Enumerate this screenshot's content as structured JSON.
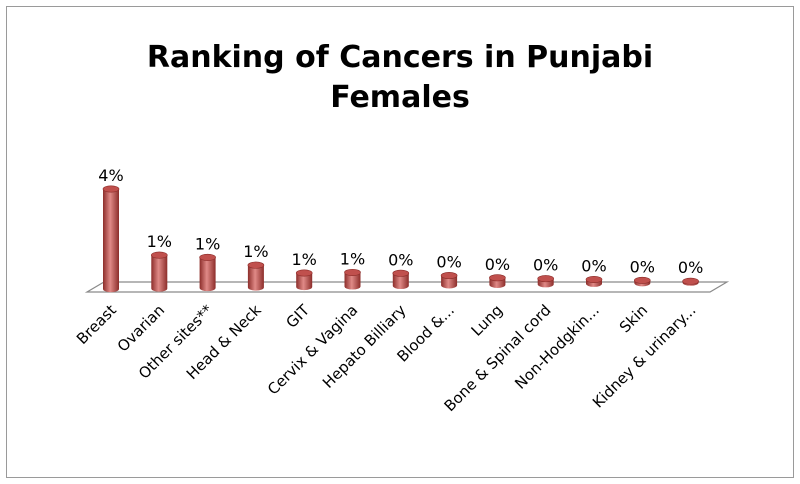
{
  "chart_data": {
    "type": "bar",
    "title_lines": [
      "Ranking of Cancers in Punjabi",
      "Females"
    ],
    "categories": [
      "Breast",
      "Ovarian",
      "Other sites**",
      "Head & Neck",
      "GIT",
      "Cervix & Vagina",
      "Hepato Billiary",
      "Blood &...",
      "Lung",
      "Bone & Spinal cord",
      "Non-Hodgkin...",
      "Skin",
      "Kidney & urinary..."
    ],
    "values": [
      3.6,
      1.2,
      1.1,
      0.8,
      0.5,
      0.5,
      0.45,
      0.35,
      0.25,
      0.2,
      0.15,
      0.1,
      0.05
    ],
    "data_labels": [
      "4%",
      "1%",
      "1%",
      "1%",
      "1%",
      "1%",
      "0%",
      "0%",
      "0%",
      "0%",
      "0%",
      "0%",
      "0%"
    ],
    "ylim": [
      0,
      3.6
    ],
    "grid": false,
    "legend": "none",
    "colors": {
      "bar": "#c0504d",
      "bar_dark": "#8c2d2a",
      "bar_light": "#e08a87",
      "floor": "#ffffff",
      "floor_stroke": "#8a8a8a"
    }
  }
}
